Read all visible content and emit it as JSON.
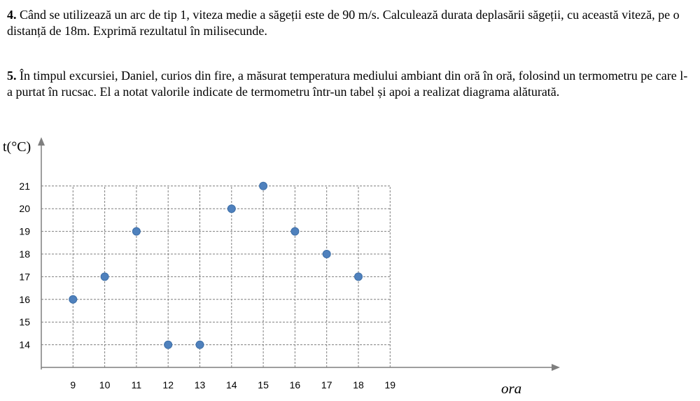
{
  "problem4": {
    "number": "4.",
    "text": " Când se utilizează un arc de tip 1, viteza medie a săgeții este de 90 m/s. Calculează durata deplasării săgeții, cu această viteză, pe o distanță de 18m. Exprimă rezultatul în milisecunde."
  },
  "problem5": {
    "number": "5.",
    "text": " În timpul excursiei, Daniel, curios din fire, a măsurat temperatura mediului ambiant din oră în oră, folosind un termometru pe care l-a purtat în rucsac. El a notat valorile indicate de termometru într-un tabel și apoi a realizat diagrama alăturată."
  },
  "chart_data": {
    "type": "scatter",
    "ylabel": "t(°C)",
    "xlabel": "ora",
    "x_ticks": [
      9,
      10,
      11,
      12,
      13,
      14,
      15,
      16,
      17,
      18,
      19
    ],
    "y_ticks": [
      14,
      15,
      16,
      17,
      18,
      19,
      20,
      21
    ],
    "xlim": [
      8,
      19
    ],
    "ylim": [
      13,
      21
    ],
    "grid": true,
    "point_color": "#4f81bd",
    "points": [
      {
        "x": 9,
        "y": 16
      },
      {
        "x": 10,
        "y": 17
      },
      {
        "x": 11,
        "y": 19
      },
      {
        "x": 12,
        "y": 14
      },
      {
        "x": 13,
        "y": 14
      },
      {
        "x": 14,
        "y": 20
      },
      {
        "x": 15,
        "y": 21
      },
      {
        "x": 16,
        "y": 19
      },
      {
        "x": 17,
        "y": 18
      },
      {
        "x": 18,
        "y": 17
      }
    ]
  }
}
